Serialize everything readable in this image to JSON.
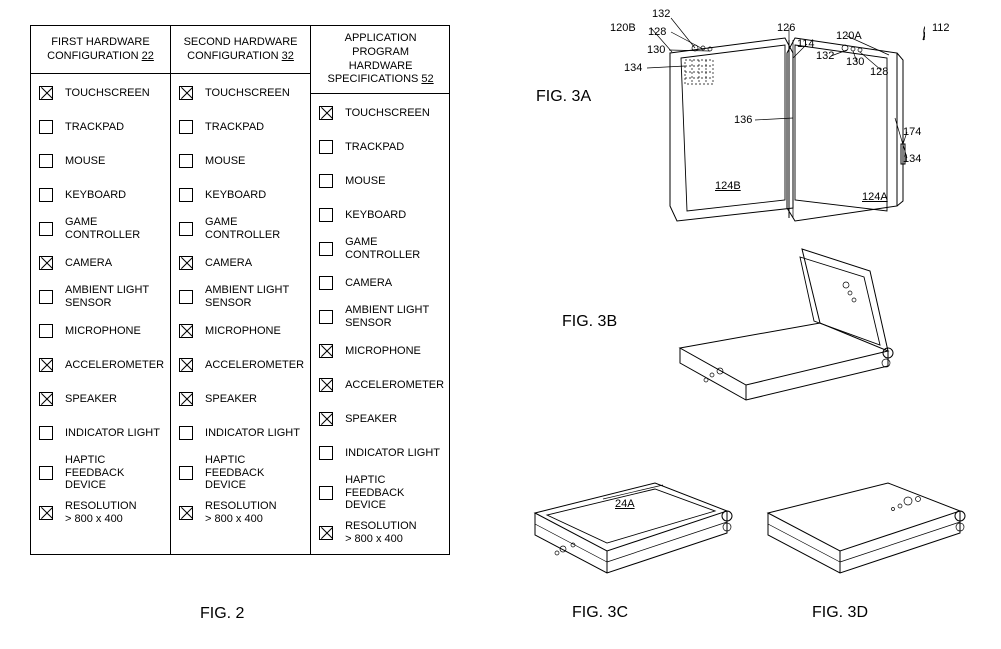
{
  "table": {
    "columns": [
      {
        "title_prefix": "FIRST HARDWARE\nCONFIGURATION ",
        "num": "22"
      },
      {
        "title_prefix": "SECOND HARDWARE\nCONFIGURATION ",
        "num": "32"
      },
      {
        "title_prefix": "APPLICATION PROGRAM\nHARDWARE\nSPECIFICATIONS ",
        "num": "52"
      }
    ],
    "rows": [
      {
        "label": "TOUCHSCREEN",
        "c": [
          true,
          true,
          true
        ]
      },
      {
        "label": "TRACKPAD",
        "c": [
          false,
          false,
          false
        ]
      },
      {
        "label": "MOUSE",
        "c": [
          false,
          false,
          false
        ]
      },
      {
        "label": "KEYBOARD",
        "c": [
          false,
          false,
          false
        ]
      },
      {
        "label": "GAME CONTROLLER",
        "c": [
          false,
          false,
          false
        ]
      },
      {
        "label": "CAMERA",
        "c": [
          true,
          true,
          false
        ]
      },
      {
        "label": "AMBIENT LIGHT\nSENSOR",
        "c": [
          false,
          false,
          false
        ]
      },
      {
        "label": "MICROPHONE",
        "c": [
          false,
          true,
          true
        ]
      },
      {
        "label": "ACCELEROMETER",
        "c": [
          true,
          true,
          true
        ]
      },
      {
        "label": "SPEAKER",
        "c": [
          true,
          true,
          true
        ]
      },
      {
        "label": "INDICATOR LIGHT",
        "c": [
          false,
          false,
          false
        ]
      },
      {
        "label": "HAPTIC FEEDBACK\nDEVICE",
        "c": [
          false,
          false,
          false
        ]
      },
      {
        "label": "RESOLUTION\n> 800 x 400",
        "c": [
          true,
          true,
          true
        ]
      }
    ],
    "caption": "FIG. 2"
  },
  "figs": {
    "a": "FIG. 3A",
    "b": "FIG. 3B",
    "c": "FIG. 3C",
    "d": "FIG. 3D"
  },
  "leaders": {
    "l120B": "120B",
    "l132a": "132",
    "l128a": "128",
    "l130a": "130",
    "l134a": "134",
    "l126": "126",
    "l114": "114",
    "l120A": "120A",
    "l132b": "132",
    "l130b": "130",
    "l128b": "128",
    "l112": "112",
    "l136": "136",
    "l174": "174",
    "l134b": "134",
    "l124A": "124A",
    "l124B": "124B",
    "l24A": "24A"
  }
}
